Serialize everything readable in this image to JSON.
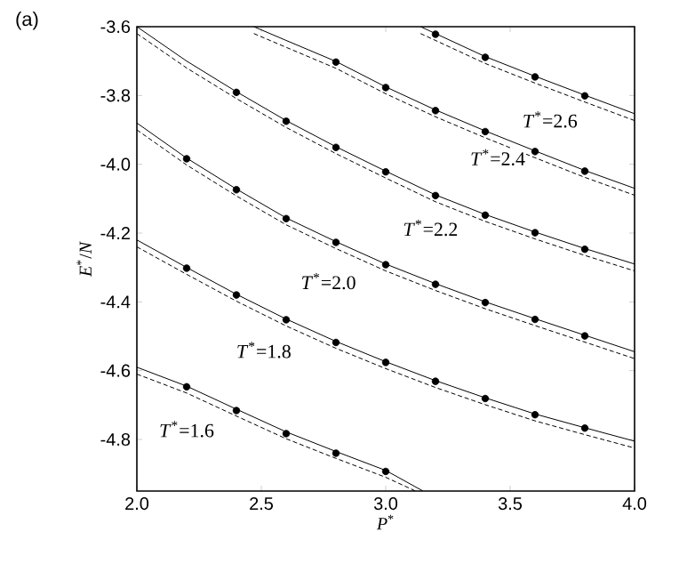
{
  "chart_data": {
    "type": "line",
    "xlabel": "*P*$^{*}$",
    "ylabel": "*E*$^{*}$/*N*",
    "xlim": [
      2.0,
      4.0
    ],
    "ylim": [
      -4.95,
      -3.6
    ],
    "xticks": [
      {
        "value": 2.0,
        "label": "2.0"
      },
      {
        "value": 2.5,
        "label": "2.5"
      },
      {
        "value": 3.0,
        "label": "3.0"
      },
      {
        "value": 3.5,
        "label": "3.5"
      },
      {
        "value": 4.0,
        "label": "4.0"
      }
    ],
    "yticks": [
      {
        "value": -3.6,
        "label": "-3.6"
      },
      {
        "value": -3.8,
        "label": "-3.8"
      },
      {
        "value": -4.0,
        "label": "-4.0"
      },
      {
        "value": -4.2,
        "label": "-4.2"
      },
      {
        "value": -4.4,
        "label": "-4.4"
      },
      {
        "value": -4.6,
        "label": "-4.6"
      },
      {
        "value": -4.8,
        "label": "-4.8"
      }
    ],
    "grid": false,
    "annotations": [
      "(a)",
      {
        "text": "*T*$^{*}$=1.6",
        "x": 2.2,
        "y": -4.77
      },
      {
        "text": "*T*$^{*}$=1.8",
        "x": 2.51,
        "y": -4.54
      },
      {
        "text": "*T*$^{*}$=2.0",
        "x": 2.77,
        "y": -4.34
      },
      {
        "text": "*T*$^{*}$=2.2",
        "x": 3.18,
        "y": -4.185
      },
      {
        "text": "*T*$^{*}$=2.4",
        "x": 3.45,
        "y": -3.98
      },
      {
        "text": "*T*$^{*}$=2.6",
        "x": 3.66,
        "y": -3.87
      }
    ],
    "series": [
      {
        "line_style": "solid",
        "color": "#000000",
        "x": [
          2.0,
          2.2,
          2.4,
          2.6,
          2.8,
          3.0,
          3.15
        ],
        "values": [
          -4.59,
          -4.645,
          -4.712,
          -4.778,
          -4.835,
          -4.89,
          -4.95
        ]
      },
      {
        "line_style": "dashed",
        "color": "#000000",
        "x": [
          2.0,
          2.2,
          2.4,
          2.6,
          2.8,
          3.0,
          3.12
        ],
        "values": [
          -4.61,
          -4.665,
          -4.732,
          -4.798,
          -4.855,
          -4.91,
          -4.95
        ]
      },
      {
        "type": "scatter",
        "marker": "circle",
        "color": "#000000",
        "x": [
          2.2,
          2.4,
          2.6,
          2.8,
          3.0
        ],
        "values": [
          -4.647,
          -4.716,
          -4.783,
          -4.84,
          -4.893
        ]
      },
      {
        "line_style": "solid",
        "color": "#000000",
        "x": [
          2.0,
          2.2,
          2.4,
          2.6,
          2.8,
          3.0,
          3.2,
          3.4,
          3.6,
          3.8,
          4.0
        ],
        "values": [
          -4.22,
          -4.3,
          -4.378,
          -4.45,
          -4.515,
          -4.574,
          -4.629,
          -4.679,
          -4.726,
          -4.766,
          -4.805
        ]
      },
      {
        "line_style": "dashed",
        "color": "#000000",
        "x": [
          2.0,
          2.2,
          2.4,
          2.6,
          2.8,
          3.0,
          3.2,
          3.4,
          3.6,
          3.8,
          4.0
        ],
        "values": [
          -4.24,
          -4.32,
          -4.398,
          -4.47,
          -4.535,
          -4.594,
          -4.649,
          -4.699,
          -4.746,
          -4.786,
          -4.825
        ]
      },
      {
        "type": "scatter",
        "marker": "circle",
        "color": "#000000",
        "x": [
          2.2,
          2.4,
          2.6,
          2.8,
          3.0,
          3.2,
          3.4,
          3.6,
          3.8
        ],
        "values": [
          -4.302,
          -4.38,
          -4.452,
          -4.518,
          -4.576,
          -4.631,
          -4.681,
          -4.728,
          -4.767
        ]
      },
      {
        "line_style": "solid",
        "color": "#000000",
        "x": [
          2.0,
          2.2,
          2.4,
          2.6,
          2.8,
          3.0,
          3.2,
          3.4,
          3.6,
          3.8,
          4.0
        ],
        "values": [
          -3.88,
          -3.982,
          -4.072,
          -4.156,
          -4.225,
          -4.29,
          -4.347,
          -4.4,
          -4.449,
          -4.497,
          -4.545
        ]
      },
      {
        "line_style": "dashed",
        "color": "#000000",
        "x": [
          2.0,
          2.2,
          2.4,
          2.6,
          2.8,
          3.0,
          3.2,
          3.4,
          3.6,
          3.8,
          4.0
        ],
        "values": [
          -3.9,
          -4.002,
          -4.092,
          -4.176,
          -4.245,
          -4.31,
          -4.367,
          -4.42,
          -4.469,
          -4.517,
          -4.565
        ]
      },
      {
        "type": "scatter",
        "marker": "circle",
        "color": "#000000",
        "x": [
          2.2,
          2.4,
          2.6,
          2.8,
          3.0,
          3.2,
          3.4,
          3.6,
          3.8
        ],
        "values": [
          -3.984,
          -4.074,
          -4.158,
          -4.227,
          -4.292,
          -4.349,
          -4.402,
          -4.451,
          -4.499
        ]
      },
      {
        "line_style": "solid",
        "color": "#000000",
        "x": [
          2.0,
          2.2,
          2.4,
          2.6,
          2.8,
          3.0,
          3.2,
          3.4,
          3.6,
          3.8,
          4.0
        ],
        "values": [
          -3.6,
          -3.7,
          -3.789,
          -3.873,
          -3.949,
          -4.02,
          -4.089,
          -4.146,
          -4.197,
          -4.245,
          -4.29
        ]
      },
      {
        "line_style": "dashed",
        "color": "#000000",
        "x": [
          2.0,
          2.2,
          2.4,
          2.6,
          2.8,
          3.0,
          3.2,
          3.4,
          3.6,
          3.8,
          4.0
        ],
        "values": [
          -3.62,
          -3.72,
          -3.809,
          -3.893,
          -3.969,
          -4.04,
          -4.109,
          -4.166,
          -4.217,
          -4.265,
          -4.31
        ]
      },
      {
        "type": "scatter",
        "marker": "circle",
        "color": "#000000",
        "x": [
          2.4,
          2.6,
          2.8,
          3.0,
          3.2,
          3.4,
          3.6,
          3.8
        ],
        "values": [
          -3.791,
          -3.875,
          -3.951,
          -4.022,
          -4.091,
          -4.148,
          -4.199,
          -4.247
        ]
      },
      {
        "line_style": "solid",
        "color": "#000000",
        "x": [
          2.47,
          2.6,
          2.8,
          3.0,
          3.2,
          3.4,
          3.6,
          3.8,
          4.0
        ],
        "values": [
          -3.6,
          -3.64,
          -3.701,
          -3.775,
          -3.842,
          -3.903,
          -3.961,
          -4.018,
          -4.07
        ]
      },
      {
        "line_style": "dashed",
        "color": "#000000",
        "x": [
          2.47,
          2.6,
          2.8,
          3.0,
          3.2,
          3.4,
          3.6,
          3.8,
          4.0
        ],
        "values": [
          -3.62,
          -3.66,
          -3.721,
          -3.795,
          -3.862,
          -3.923,
          -3.981,
          -4.038,
          -4.09
        ]
      },
      {
        "type": "scatter",
        "marker": "circle",
        "color": "#000000",
        "x": [
          2.8,
          3.0,
          3.2,
          3.4,
          3.6,
          3.8
        ],
        "values": [
          -3.703,
          -3.777,
          -3.844,
          -3.905,
          -3.963,
          -4.02
        ]
      },
      {
        "line_style": "solid",
        "color": "#000000",
        "x": [
          3.14,
          3.2,
          3.4,
          3.6,
          3.8,
          4.0
        ],
        "values": [
          -3.6,
          -3.62,
          -3.687,
          -3.744,
          -3.799,
          -3.853
        ]
      },
      {
        "line_style": "dashed",
        "color": "#000000",
        "x": [
          3.14,
          3.2,
          3.4,
          3.6,
          3.8,
          4.0
        ],
        "values": [
          -3.62,
          -3.64,
          -3.707,
          -3.764,
          -3.819,
          -3.873
        ]
      },
      {
        "type": "scatter",
        "marker": "circle",
        "color": "#000000",
        "x": [
          3.2,
          3.4,
          3.6,
          3.8
        ],
        "values": [
          -3.622,
          -3.689,
          -3.746,
          -3.801
        ]
      }
    ]
  }
}
